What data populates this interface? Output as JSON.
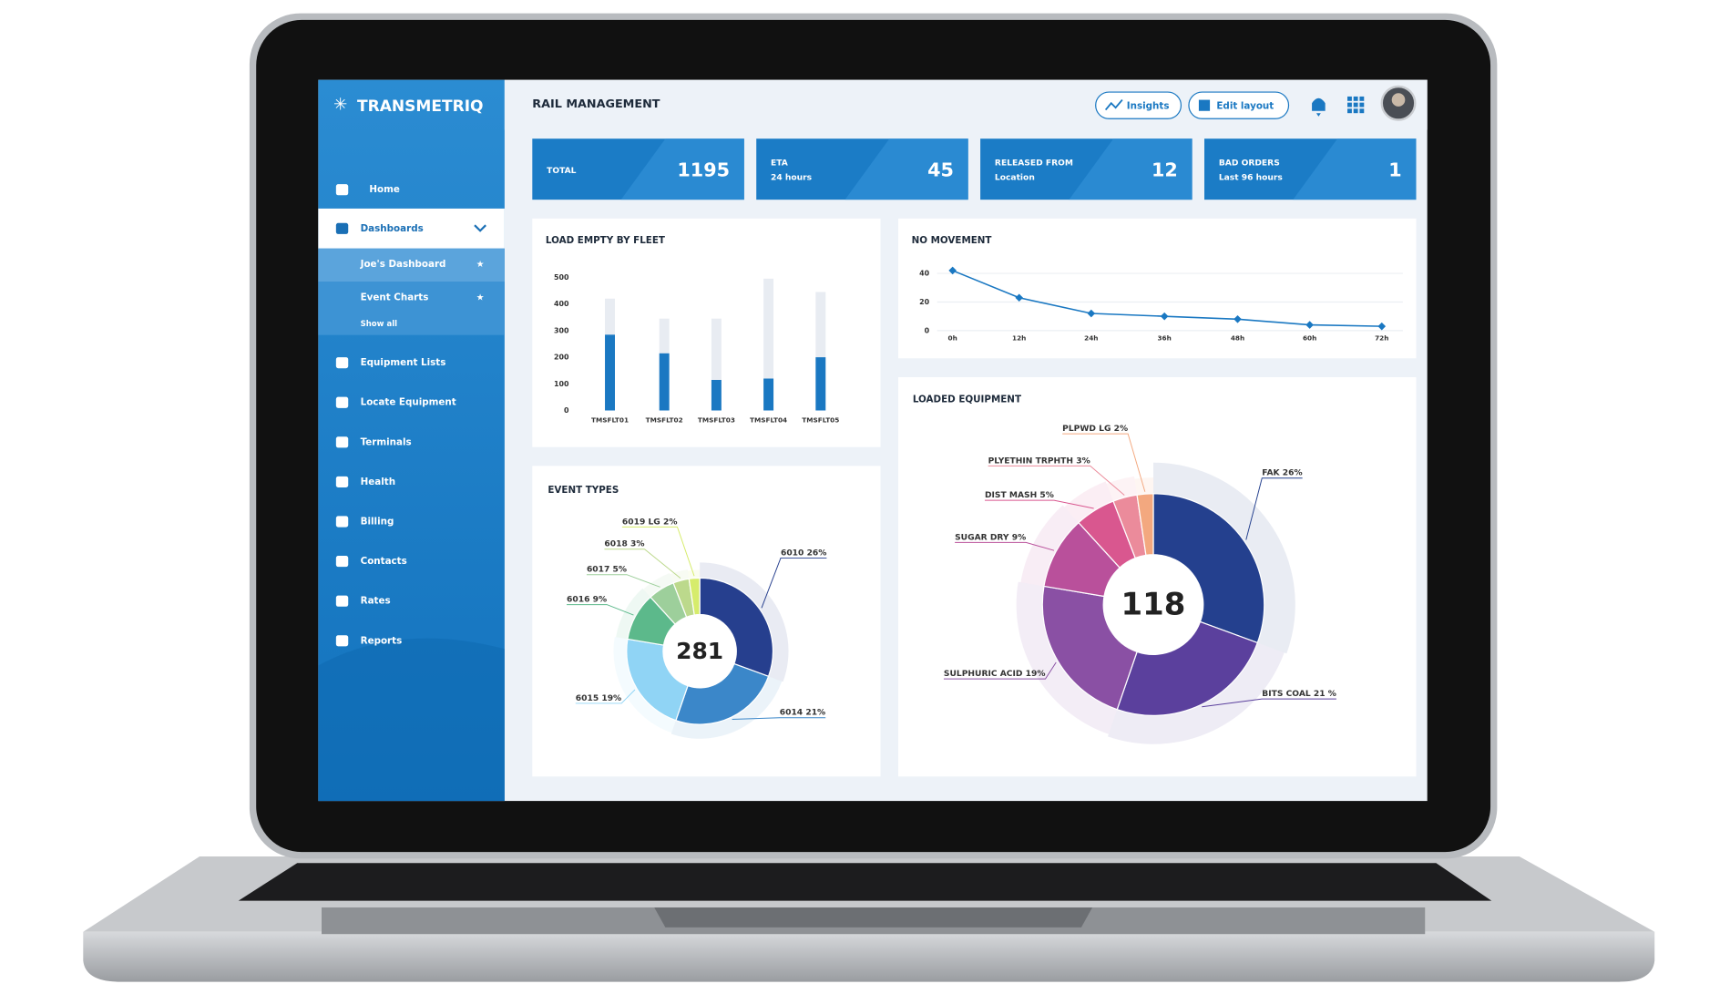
{
  "brand": "TRANSMETRIQ",
  "nav": [
    "Home",
    "Dashboards",
    "Joe's Dashboard",
    "Event Charts",
    "Show all",
    "Equipment Lists",
    "Locate Equipment",
    "Terminals",
    "Health",
    "Billing",
    "Contacts",
    "Rates",
    "Reports"
  ],
  "header": {
    "title": "RAIL MANAGEMENT",
    "buttons": [
      "Insights",
      "Edit layout"
    ]
  },
  "kpis": [
    {
      "label": "TOTAL",
      "value": 1195
    },
    {
      "label": "ETA",
      "sublabel": "24 hours",
      "value": 45
    },
    {
      "label": "RELEASED FROM",
      "sublabel": "Location",
      "value": 12
    },
    {
      "label": "BAD ORDERS",
      "sublabel": "Last 96 hours",
      "value": 1
    }
  ],
  "panels": {
    "load_empty": {
      "type": "bar",
      "title": "LOAD EMPTY BY FLEET",
      "stacked": true,
      "categories": [
        "TMSFLT01",
        "TMSFLT02",
        "TMSFLT03",
        "TMSFLT04",
        "TMSFLT05"
      ],
      "series": [
        {
          "color": "#1a78c2",
          "values": [
            285,
            215,
            115,
            120,
            200
          ]
        },
        {
          "color": "#e8ecf2",
          "values": [
            135,
            130,
            230,
            375,
            245
          ]
        }
      ],
      "ylim": [
        0,
        500
      ],
      "yticks": [
        0,
        100,
        200,
        300,
        400,
        500
      ]
    },
    "no_movement": {
      "type": "line",
      "title": "NO MOVEMENT",
      "categories": [
        "0h",
        "12h",
        "24h",
        "36h",
        "48h",
        "60h",
        "72h"
      ],
      "values": [
        42,
        23,
        12,
        10,
        8,
        4,
        3
      ],
      "color": "#1a78c2",
      "ylim": [
        0,
        45
      ],
      "yticks": [
        0,
        20,
        40
      ],
      "grid": true
    },
    "event_types": {
      "type": "pie",
      "title": "EVENT TYPES",
      "center_label": 281,
      "categories": [
        "6010",
        "6014",
        "6015",
        "6016",
        "6017",
        "6018",
        "6019 LG"
      ],
      "values": [
        26,
        21,
        19,
        9,
        5,
        3,
        2
      ],
      "value_labels": [
        "26%",
        "21%",
        "19%",
        "9%",
        "5%",
        "3%",
        "2%"
      ],
      "colors": [
        "#263f8e",
        "#3b87c9",
        "#90d4f5",
        "#5cb98b",
        "#9dcf9b",
        "#bcd98c",
        "#d6ec6b"
      ]
    },
    "loaded_equipment": {
      "type": "pie",
      "title": "LOADED EQUIPMENT",
      "center_label": 118,
      "categories": [
        "FAK",
        "BITS COAL",
        "SULPHURIC ACID",
        "SUGAR DRY",
        "DIST MASH",
        "PLYETHIN TRPHTH",
        "PLPWD LG"
      ],
      "values": [
        26,
        21,
        19,
        9,
        5,
        3,
        2
      ],
      "value_labels": [
        "26%",
        "21 %",
        "19%",
        "9%",
        "5%",
        "3%",
        "2%"
      ],
      "colors": [
        "#24408e",
        "#5b409d",
        "#8a50a4",
        "#b9509b",
        "#d9578f",
        "#eb8b9b",
        "#f3a87f"
      ]
    }
  }
}
